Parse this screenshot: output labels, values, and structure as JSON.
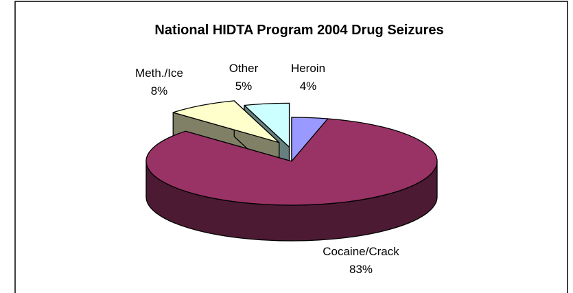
{
  "chart_data": {
    "type": "pie",
    "style": "3d-exploded",
    "title": "National HIDTA Program 2004 Drug Seizures",
    "slices": [
      {
        "label": "Heroin",
        "value_label": "4%",
        "value": 4,
        "color": "#9999ff",
        "dark": "#4d4d80"
      },
      {
        "label": "Cocaine/Crack",
        "value_label": "83%",
        "value": 83,
        "color": "#993366",
        "dark": "#4d1a33"
      },
      {
        "label": "Meth./Ice",
        "value_label": "8%",
        "value": 8,
        "color": "#ffffcc",
        "dark": "#808066"
      },
      {
        "label": "Other",
        "value_label": "5%",
        "value": 5,
        "color": "#ccffff",
        "dark": "#668080"
      }
    ],
    "legend": "none",
    "border_color": "#000000"
  }
}
